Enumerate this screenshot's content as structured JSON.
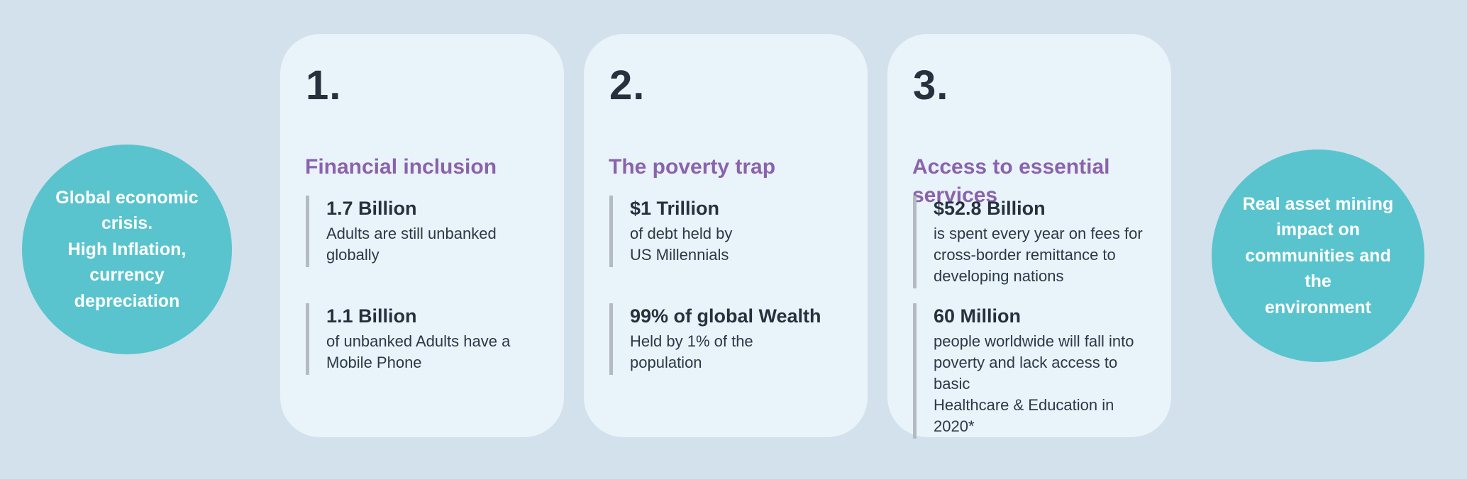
{
  "page": {
    "background_color": "#d2e1ec",
    "card_background_color": "#e9f3fa",
    "bubble_color": "#59c4ce",
    "heading_color": "#8a63ab",
    "text_color": "#25323e",
    "accent_bar_color": "#b3bbc1"
  },
  "left_bubble": {
    "text": "Global economic\ncrisis.\nHigh Inflation,\ncurrency\ndepreciation"
  },
  "right_bubble": {
    "text": "Real asset  mining\nimpact on\ncommunities and the\nenvironment"
  },
  "cards": [
    {
      "number": "1.",
      "heading": "Financial inclusion",
      "stats": [
        {
          "title": "1.7 Billion",
          "desc": "Adults are still unbanked\nglobally"
        },
        {
          "title": "1.1 Billion",
          "desc": "of unbanked Adults have a\nMobile Phone"
        }
      ]
    },
    {
      "number": "2.",
      "heading": "The poverty trap",
      "stats": [
        {
          "title": "$1 Trillion",
          "desc": "of debt held by\nUS Millennials"
        },
        {
          "title": "99% of global Wealth",
          "desc": "Held by 1% of the\npopulation"
        }
      ]
    },
    {
      "number": "3.",
      "heading": "Access to essential\nservices",
      "stats": [
        {
          "title": "$52.8 Billion",
          "desc": "is spent every year on fees for\ncross-border remittance to\ndeveloping nations"
        },
        {
          "title": "60 Million",
          "desc": "people worldwide will fall into\npoverty and lack access to basic\nHealthcare & Education in 2020*"
        }
      ]
    }
  ]
}
